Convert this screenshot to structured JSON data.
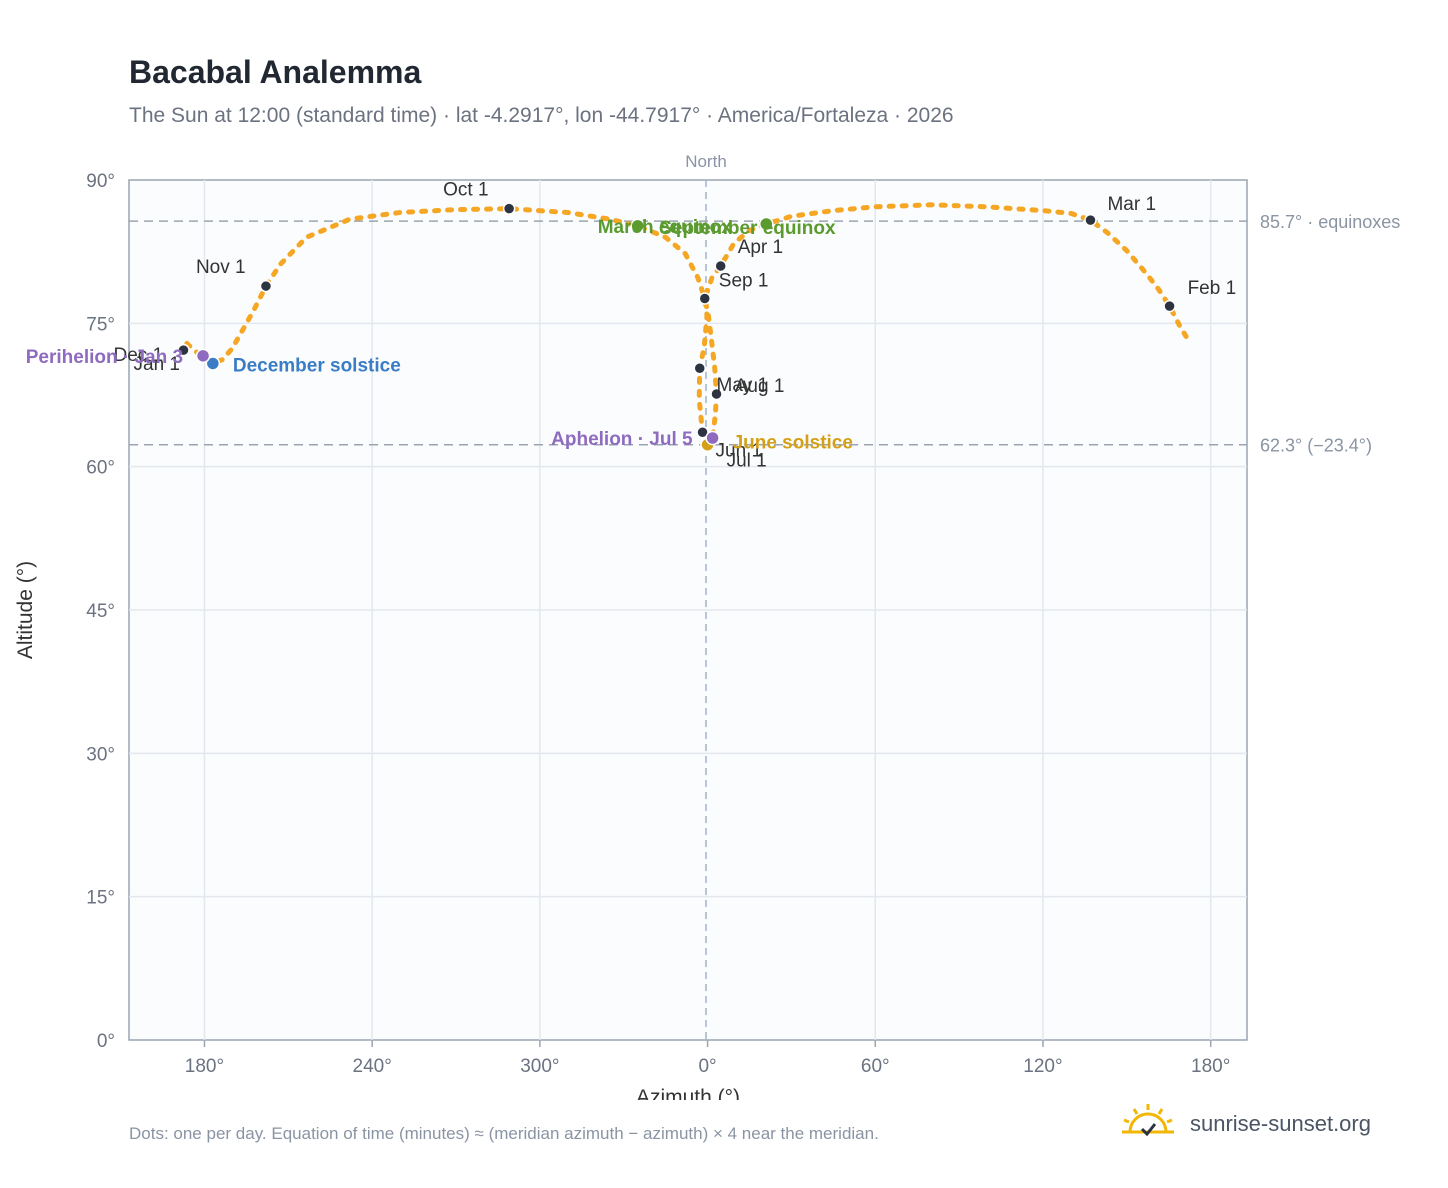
{
  "header": {
    "title": "Bacabal Analemma",
    "subtitle": "The Sun at 12:00 (standard time) · lat -4.2917°, lon -44.7917° · America/Fortaleza · 2026"
  },
  "footer": {
    "note": "Dots: one per day. Equation of time (minutes) ≈ (meridian azimuth − azimuth) × 4 near the meridian.",
    "brand": "sunrise-sunset.org"
  },
  "colors": {
    "curve": "#f5a623",
    "month_dot": "#2d3340",
    "equinox": "#5a9a2e",
    "december_solstice": "#3b7dc4",
    "june_solstice": "#d4a017",
    "apsis": "#8e6bbf",
    "reference": "#9aa5b1"
  },
  "chart_data": {
    "type": "scatter",
    "xlabel": "Azimuth (°)",
    "ylabel": "Altitude (°)",
    "top_label": "North",
    "x_ticks": [
      "180°",
      "240°",
      "300°",
      "0°",
      "60°",
      "120°",
      "180°"
    ],
    "y_ticks": [
      "0°",
      "15°",
      "30°",
      "45°",
      "60°",
      "75°",
      "90°"
    ],
    "ylim": [
      0,
      90
    ],
    "x_range_continuous": [
      -207,
      193
    ],
    "grid": true,
    "reference_lines": [
      {
        "altitude": 85.7,
        "label": "85.7° · equinoxes"
      },
      {
        "altitude": 62.3,
        "label": "62.3° (−23.4°)"
      }
    ],
    "month_markers": [
      {
        "label": "Jan 1",
        "az": -187.5,
        "alt": 72.2
      },
      {
        "label": "Feb 1",
        "az": 165.3,
        "alt": 76.8
      },
      {
        "label": "Mar 1",
        "az": 137.0,
        "alt": 85.8
      },
      {
        "label": "Apr 1",
        "az": 4.7,
        "alt": 81.0
      },
      {
        "label": "May 1",
        "az": 3.2,
        "alt": 67.6
      },
      {
        "label": "Jun 1",
        "az": -1.8,
        "alt": 63.6
      },
      {
        "label": "Jul 1",
        "az": 0.0,
        "alt": 62.3
      },
      {
        "label": "Aug 1",
        "az": -2.8,
        "alt": 70.3
      },
      {
        "label": "Sep 1",
        "az": -1.0,
        "alt": 77.6
      },
      {
        "label": "Oct 1",
        "az": -71.0,
        "alt": 87.0
      },
      {
        "label": "Nov 1",
        "az": -158.0,
        "alt": 78.9
      },
      {
        "label": "Dec 1",
        "az": -187.5,
        "alt": 72.2
      }
    ],
    "events": [
      {
        "label": "March equinox",
        "az": -25.0,
        "alt": 85.2,
        "kind": "equinox"
      },
      {
        "label": "September equinox",
        "az": 21.0,
        "alt": 85.4,
        "kind": "equinox"
      },
      {
        "label": "December solstice",
        "az": -177.0,
        "alt": 70.8,
        "kind": "december_solstice"
      },
      {
        "label": "June solstice",
        "az": 0.0,
        "alt": 62.3,
        "kind": "june_solstice"
      },
      {
        "label": "Perihelion · Jan 3",
        "az": -180.5,
        "alt": 71.6,
        "kind": "apsis"
      },
      {
        "label": "Aphelion · Jul 5",
        "az": 1.8,
        "alt": 63.0,
        "kind": "apsis"
      }
    ],
    "path": [
      [
        -186.3,
        72.9
      ],
      [
        -183.5,
        72.1
      ],
      [
        -180.5,
        71.6
      ],
      [
        -177.0,
        70.8
      ],
      [
        -173.6,
        71.2
      ],
      [
        -170.0,
        72.4
      ],
      [
        -162.5,
        76.3
      ],
      [
        -158.0,
        78.9
      ],
      [
        -152.8,
        81.2
      ],
      [
        -143.5,
        84.0
      ],
      [
        -128.0,
        85.9
      ],
      [
        -110.0,
        86.6
      ],
      [
        -90.0,
        86.9
      ],
      [
        -71.0,
        87.0
      ],
      [
        -50.0,
        86.6
      ],
      [
        -35.0,
        85.9
      ],
      [
        -25.0,
        85.2
      ],
      [
        -15.0,
        84.0
      ],
      [
        -8.0,
        82.3
      ],
      [
        -3.5,
        79.8
      ],
      [
        -1.0,
        77.6
      ],
      [
        -0.2,
        75.8
      ],
      [
        -1.2,
        72.5
      ],
      [
        -2.8,
        70.3
      ],
      [
        -3.0,
        67.0
      ],
      [
        -1.8,
        63.6
      ],
      [
        0.0,
        62.3
      ],
      [
        1.8,
        63.0
      ],
      [
        2.8,
        65.5
      ],
      [
        3.2,
        67.6
      ],
      [
        2.5,
        70.5
      ],
      [
        1.3,
        73.5
      ],
      [
        0.3,
        75.8
      ],
      [
        -1.0,
        77.6
      ],
      [
        1.6,
        79.8
      ],
      [
        4.7,
        81.0
      ],
      [
        9.5,
        83.4
      ],
      [
        15.0,
        84.7
      ],
      [
        21.0,
        85.4
      ],
      [
        30.0,
        86.2
      ],
      [
        45.0,
        86.8
      ],
      [
        60.0,
        87.2
      ],
      [
        80.0,
        87.4
      ],
      [
        100.0,
        87.2
      ],
      [
        120.0,
        86.8
      ],
      [
        130.0,
        86.5
      ],
      [
        137.0,
        85.8
      ],
      [
        143.0,
        84.5
      ],
      [
        150.0,
        82.6
      ],
      [
        157.0,
        80.2
      ],
      [
        161.5,
        78.5
      ],
      [
        165.3,
        76.8
      ],
      [
        169.0,
        74.7
      ],
      [
        172.5,
        73.0
      ]
    ]
  }
}
